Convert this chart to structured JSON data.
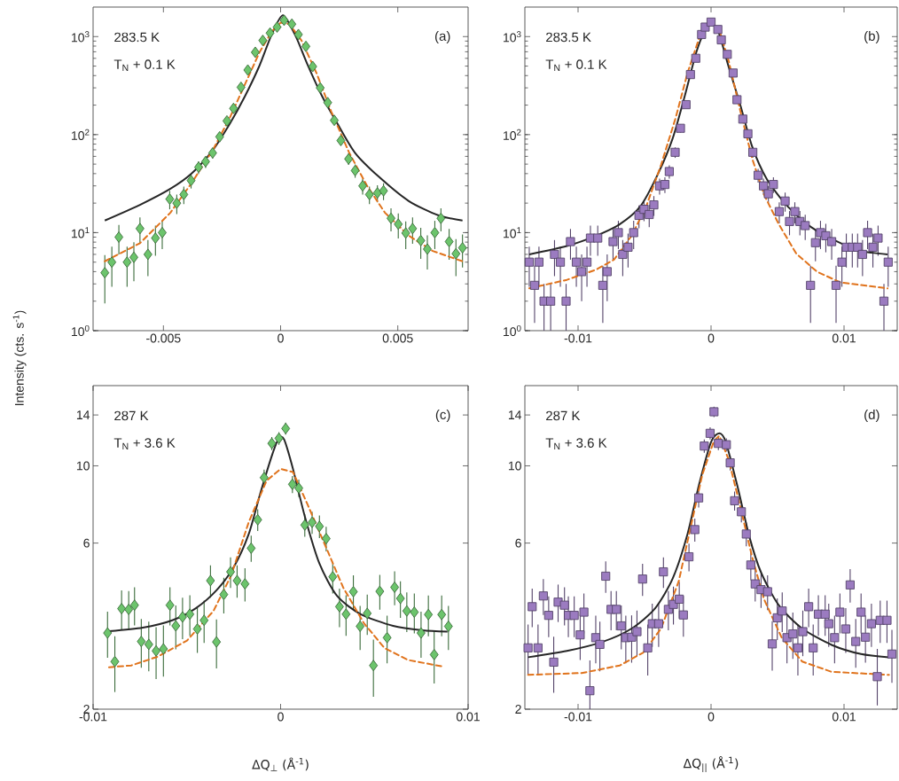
{
  "chart_data": [
    {
      "type": "scatter",
      "ylabel": "Intensity (cts. s$^{-1}$)",
      "annotations": [
        "283.5 K",
        "T$_{N}$ + 0.1 K",
        "(a)"
      ],
      "log": true,
      "xlim": [
        -0.008,
        0.008
      ],
      "ylim": [
        1,
        2000
      ],
      "xticks": [
        -0.005,
        0,
        0.005
      ],
      "yticks": [
        {
          "value": 1,
          "label": "10$^{0}$"
        },
        {
          "value": 10,
          "label": "10$^{1}$"
        },
        {
          "value": 100,
          "label": "10$^{2}$"
        },
        {
          "value": 1000,
          "label": "10$^{3}$"
        }
      ],
      "series": [
        {
          "color": "#6cc46c",
          "marker": "diamond",
          "x": [
            -0.0075,
            -0.0072,
            -0.0069,
            -0.00655,
            -0.00626,
            -0.006,
            -0.00566,
            -0.00534,
            -0.00505,
            -0.00473,
            -0.00443,
            -0.00413,
            -0.00382,
            -0.0035,
            -0.0032,
            -0.0029,
            -0.0026,
            -0.00229,
            -0.00201,
            -0.00169,
            -0.0014,
            -0.00108,
            -0.00076,
            -0.00045,
            -0.00015,
            0.00015,
            0.00048,
            0.00076,
            0.00108,
            0.00137,
            0.00169,
            0.00201,
            0.00229,
            0.00257,
            0.0029,
            0.00318,
            0.0035,
            0.00379,
            0.00413,
            0.00439,
            0.00471,
            0.00502,
            0.00534,
            0.00563,
            0.00598,
            0.00626,
            0.00658,
            0.00684,
            0.00719,
            0.00748,
            0.00776
          ],
          "values": [
            3.9,
            5,
            9,
            5,
            5.6,
            11,
            6,
            8.8,
            10,
            22,
            20,
            24.5,
            34,
            46.5,
            53,
            65,
            95,
            138,
            185,
            304,
            456,
            692,
            914,
            1087,
            1250,
            1467,
            1340,
            1050,
            794,
            495,
            300,
            212,
            140,
            87,
            56.5,
            43,
            30,
            24.5,
            25.4,
            26.7,
            14,
            12.2,
            9.9,
            11,
            8.3,
            6.8,
            10,
            14,
            8.1,
            6.1,
            7
          ],
          "errors": [
            2,
            2.2,
            3,
            2.2,
            2.4,
            3.3,
            2.4,
            3,
            3.2,
            4.7,
            4.5,
            5,
            5.8,
            6.8,
            7.3,
            8,
            10,
            12,
            14,
            17,
            21,
            26,
            30,
            null,
            null,
            null,
            null,
            null,
            28,
            22,
            17,
            15,
            12,
            9,
            7.5,
            6.6,
            5.5,
            5,
            5,
            5.2,
            3.7,
            3.5,
            3.1,
            3.3,
            2.9,
            2.6,
            3.2,
            3.7,
            2.8,
            2.5,
            2.6
          ]
        },
        {
          "type": "line",
          "color": "#262626",
          "marker": "none",
          "line_style": "solid",
          "x": [
            -0.0075,
            -0.006,
            -0.0047,
            -0.0038,
            -0.0029,
            -0.00216,
            -0.00153,
            -0.0009,
            -0.00038,
            0.0001,
            0.00064,
            0.00114,
            0.00178,
            0.00242,
            0.00318,
            0.0042,
            0.00547,
            0.00674,
            0.00776
          ],
          "values": [
            13.3,
            19.2,
            28,
            40,
            69,
            130,
            244,
            506,
            1050,
            1650,
            1014,
            524,
            244,
            130,
            65,
            37,
            21,
            15,
            13.3
          ]
        },
        {
          "type": "line",
          "color": "#e0731c",
          "marker": "none",
          "line_style": "dashed",
          "x": [
            -0.0075,
            -0.006,
            -0.0047,
            -0.0038,
            -0.0029,
            -0.00216,
            -0.00153,
            -0.0009,
            -0.00038,
            0,
            0.00038,
            0.00089,
            0.00153,
            0.00216,
            0.00293,
            0.00369,
            0.00445,
            0.00547,
            0.00649,
            0.00776
          ],
          "values": [
            5.1,
            7.8,
            16,
            32,
            69,
            150,
            322,
            692,
            1125,
            1387,
            1340,
            914,
            425,
            172,
            65,
            30,
            16,
            9.3,
            6.5,
            5.1
          ]
        }
      ]
    },
    {
      "type": "scatter",
      "annotations": [
        "283.5 K",
        "T$_{N}$ + 0.1 K",
        "(b)"
      ],
      "log": true,
      "xlim": [
        -0.014,
        0.014
      ],
      "ylim": [
        1,
        2000
      ],
      "xticks": [
        -0.01,
        0,
        0.01
      ],
      "yticks": [
        {
          "value": 1,
          "label": "10$^{0}$"
        },
        {
          "value": 10,
          "label": "10$^{1}$"
        },
        {
          "value": 100,
          "label": "10$^{2}$"
        },
        {
          "value": 1000,
          "label": "10$^{3}$"
        }
      ],
      "series": [
        {
          "color": "#9b7bc0",
          "marker": "square",
          "x": [
            -0.01367,
            -0.01327,
            -0.01294,
            -0.01256,
            -0.01206,
            -0.01177,
            -0.01133,
            -0.0109,
            -0.01057,
            -0.01013,
            -0.00973,
            -0.00933,
            -0.00907,
            -0.00852,
            -0.00814,
            -0.00781,
            -0.00737,
            -0.00697,
            -0.00664,
            -0.00624,
            -0.00582,
            -0.00542,
            -0.00504,
            -0.00465,
            -0.0043,
            -0.00387,
            -0.00347,
            -0.00314,
            -0.0027,
            -0.0023,
            -0.00188,
            -0.00155,
            -0.00115,
            -0.00071,
            -0.00044,
            0,
            0.00051,
            0.00077,
            0.00122,
            0.00166,
            0.00195,
            0.00239,
            0.00277,
            0.00314,
            0.00354,
            0.00394,
            0.00431,
            0.00469,
            0.00513,
            0.00557,
            0.0059,
            0.0063,
            0.00668,
            0.00708,
            0.00748,
            0.00785,
            0.00823,
            0.00863,
            0.00907,
            0.0094,
            0.00984,
            0.01017,
            0.01062,
            0.01102,
            0.01139,
            0.01177,
            0.01217,
            0.01256,
            0.013,
            0.01332
          ],
          "values": [
            5,
            2.9,
            5,
            2,
            2,
            6,
            5,
            2,
            8.1,
            5,
            4,
            5,
            8.8,
            8.8,
            2.9,
            4,
            8.1,
            10,
            6,
            7.1,
            10,
            15,
            17.3,
            15.3,
            19.2,
            30,
            31,
            42,
            66,
            116,
            202,
            410,
            601,
            1050,
            1250,
            1406,
            1182,
            926,
            659,
            425,
            227,
            144,
            102,
            66,
            38.5,
            30,
            24.9,
            31,
            16.4,
            21,
            13,
            16.4,
            13,
            11.8,
            2.9,
            7.9,
            10,
            9.3,
            8.1,
            2.9,
            5,
            7.1,
            7.1,
            7.1,
            6,
            10,
            7.1,
            8.8,
            2,
            5
          ],
          "errors": [
            2.2,
            1.7,
            2.2,
            1,
            1,
            2.4,
            2.2,
            1,
            2.8,
            2.2,
            2,
            2.2,
            3,
            3,
            1.7,
            2,
            2.8,
            3.2,
            2.4,
            2.7,
            3.2,
            3.9,
            4.2,
            3.9,
            4.4,
            5.5,
            5.6,
            6.5,
            8.1,
            11,
            14,
            20,
            25,
            null,
            null,
            null,
            null,
            null,
            26,
            21,
            15,
            12,
            10,
            8.1,
            6.2,
            5.5,
            5,
            5.6,
            4,
            4.6,
            3.6,
            4,
            3.6,
            3.4,
            1.7,
            2.8,
            3.2,
            3,
            2.8,
            1.7,
            2.2,
            2.7,
            2.7,
            2.7,
            2.4,
            3.2,
            2.7,
            3,
            1,
            2.2
          ]
        },
        {
          "type": "line",
          "color": "#262626",
          "marker": "none",
          "line_style": "solid",
          "x": [
            -0.01367,
            -0.01084,
            -0.00863,
            -0.00686,
            -0.00531,
            -0.00398,
            -0.00288,
            -0.00199,
            -0.00111,
            -0.00044,
            4e-05,
            0.00055,
            0.00133,
            0.00221,
            0.0031,
            0.0042,
            0.00575,
            0.00752,
            0.00951,
            0.01128,
            0.01327
          ],
          "values": [
            6,
            7.3,
            9.3,
            12.2,
            18.6,
            40,
            92,
            244,
            692,
            1165,
            1340,
            1125,
            489,
            198,
            75,
            35,
            18.6,
            11.4,
            8.1,
            6.5,
            6
          ]
        },
        {
          "type": "line",
          "color": "#e0731c",
          "marker": "none",
          "line_style": "dashed",
          "x": [
            -0.01367,
            -0.01084,
            -0.00863,
            -0.0073,
            -0.00597,
            -0.00487,
            -0.00376,
            -0.00265,
            -0.00177,
            -0.00088,
            0,
            0.00066,
            0.00133,
            0.00221,
            0.0031,
            0.00398,
            0.00509,
            0.00641,
            0.00796,
            0.00973,
            0.01327
          ],
          "values": [
            2.7,
            3.3,
            4.2,
            5.3,
            9.3,
            18.6,
            49,
            150,
            425,
            979,
            1435,
            1125,
            561,
            172,
            56.5,
            24.5,
            12.2,
            6.1,
            4,
            3.1,
            2.7
          ]
        }
      ]
    },
    {
      "type": "scatter",
      "xlabel": "ΔQ$_{⊥}$ (Å$^{-1}$)",
      "annotations": [
        "287 K",
        "T$_{N}$ + 3.6 K",
        "(c)"
      ],
      "log": true,
      "xlim": [
        -0.01,
        0.01
      ],
      "ylim": [
        2,
        17
      ],
      "xticks": [
        -0.01,
        0,
        0.01
      ],
      "yticks": [
        2,
        6,
        10,
        14
      ],
      "series": [
        {
          "color": "#6cc46c",
          "marker": "diamond",
          "x": [
            -0.00923,
            -0.00884,
            -0.00848,
            -0.0081,
            -0.00779,
            -0.00743,
            -0.00703,
            -0.00664,
            -0.00625,
            -0.0059,
            -0.00559,
            -0.00523,
            -0.00484,
            -0.00444,
            -0.00408,
            -0.00374,
            -0.00342,
            -0.00303,
            -0.00267,
            -0.00232,
            -0.0019,
            -0.00157,
            -0.00122,
            -0.00088,
            -0.00047,
            -9e-05,
            0.00027,
            0.00063,
            0.00097,
            0.00129,
            0.00168,
            0.00207,
            0.00243,
            0.00278,
            0.00314,
            0.00349,
            0.00388,
            0.00424,
            0.00462,
            0.00495,
            0.00529,
            0.00568,
            0.00608,
            0.00639,
            0.00673,
            0.00713,
            0.00749,
            0.00788,
            0.00819,
            0.00859,
            0.00895
          ],
          "values": [
            3.31,
            2.74,
            3.89,
            3.87,
            3.98,
            3.13,
            3.07,
            2.94,
            2.98,
            3.98,
            3.47,
            3.68,
            3.75,
            3.4,
            3.6,
            4.68,
            3.12,
            4.27,
            4.96,
            4.68,
            4.58,
            5.8,
            7,
            9.25,
            11.6,
            12,
            12.8,
            8.85,
            8.63,
            6.76,
            6.88,
            6.7,
            6.18,
            4.8,
            3.94,
            3.75,
            4.35,
            3.46,
            3.77,
            2.67,
            4.36,
            3.21,
            4.48,
            4.16,
            3.83,
            3.8,
            3.31,
            3.74,
            2.87,
            3.74,
            3.46
          ],
          "errors": [
            0.5,
            0.5,
            0.5,
            0.5,
            0.5,
            0.5,
            0.5,
            0.5,
            0.5,
            0.5,
            0.5,
            0.5,
            0.5,
            0.5,
            0.5,
            0.5,
            0.5,
            0.5,
            0.5,
            0.5,
            0.5,
            0.5,
            0.5,
            0.5,
            0.5,
            0.5,
            0.5,
            0.5,
            0.5,
            0.5,
            0.5,
            0.5,
            0.5,
            0.5,
            0.5,
            0.5,
            0.5,
            0.5,
            0.5,
            0.5,
            0.5,
            0.5,
            0.5,
            0.5,
            0.5,
            0.5,
            0.5,
            0.5,
            0.5,
            0.5,
            0.5
          ]
        },
        {
          "type": "line",
          "color": "#262626",
          "marker": "none",
          "line_style": "solid",
          "x": [
            -0.00915,
            -0.00735,
            -0.00578,
            -0.00452,
            -0.00342,
            -0.00248,
            -0.0017,
            -0.00107,
            -0.00044,
            -9e-05,
            0.00019,
            0.00066,
            0.00129,
            0.00207,
            0.00301,
            0.00427,
            0.006,
            0.00757,
            0.0089
          ],
          "values": [
            3.35,
            3.43,
            3.6,
            3.9,
            4.39,
            5.14,
            6.37,
            8.38,
            10.8,
            12,
            11.9,
            9.8,
            7.16,
            5.24,
            4.23,
            3.75,
            3.47,
            3.37,
            3.34
          ]
        },
        {
          "type": "line",
          "color": "#e0731c",
          "marker": "none",
          "line_style": "dashed",
          "x": [
            -0.00915,
            -0.00797,
            -0.00656,
            -0.00499,
            -0.00358,
            -0.00264,
            -0.0017,
            -0.00075,
            0,
            0.00066,
            0.00144,
            0.00239,
            0.00333,
            0.00443,
            0.00553,
            0.00678,
            0.00867
          ],
          "values": [
            2.64,
            2.67,
            2.83,
            3.15,
            3.83,
            4.84,
            6.89,
            9.06,
            9.8,
            9.6,
            7.74,
            5.89,
            4.48,
            3.54,
            3,
            2.77,
            2.65
          ]
        }
      ]
    },
    {
      "type": "scatter",
      "xlabel": "ΔQ$_{||}$ (Å$^{-1}$)",
      "annotations": [
        "287 K",
        "T$_{N}$ + 3.6 K",
        "(d)"
      ],
      "log": true,
      "xlim": [
        -0.014,
        0.014
      ],
      "ylim": [
        2,
        17
      ],
      "xticks": [
        -0.01,
        0,
        0.01
      ],
      "yticks": [
        2,
        6,
        10,
        14
      ],
      "series": [
        {
          "color": "#9b7bc0",
          "marker": "square",
          "x": [
            -0.01376,
            -0.01345,
            -0.01301,
            -0.01261,
            -0.01221,
            -0.01183,
            -0.0115,
            -0.01102,
            -0.01073,
            -0.01029,
            -0.00984,
            -0.00956,
            -0.00911,
            -0.00867,
            -0.00836,
            -0.00792,
            -0.00752,
            -0.00712,
            -0.00675,
            -0.00641,
            -0.00597,
            -0.00557,
            -0.00515,
            -0.00476,
            -0.00442,
            -0.00394,
            -0.00358,
            -0.00321,
            -0.00283,
            -0.00239,
            -0.00208,
            -0.00166,
            -0.00122,
            -0.00093,
            -0.00051,
            -7e-05,
            0.00022,
            0.00055,
            0.00115,
            0.00144,
            0.00177,
            0.00228,
            0.00265,
            0.00299,
            0.00332,
            0.00376,
            0.00425,
            0.0046,
            0.00498,
            0.00535,
            0.00571,
            0.00615,
            0.00653,
            0.0069,
            0.00734,
            0.00768,
            0.00807,
            0.00858,
            0.00885,
            0.00929,
            0.00969,
            0.01013,
            0.01046,
            0.01088,
            0.01128,
            0.01161,
            0.01206,
            0.0125,
            0.01272,
            0.01323,
            0.0136
          ],
          "values": [
            3,
            3.94,
            3,
            4.23,
            3.72,
            2.73,
            4.06,
            3.98,
            3.72,
            3.72,
            3.27,
            3.8,
            2.26,
            3.21,
            3.07,
            4.82,
            3.87,
            3.87,
            3.47,
            3.21,
            3.22,
            3.34,
            4.73,
            3,
            3.52,
            3.52,
            4.96,
            3.87,
            4,
            4.14,
            3.73,
            5.48,
            6.56,
            8.09,
            11.4,
            12.4,
            14.3,
            11.6,
            11.5,
            10.2,
            7.94,
            7.38,
            6.37,
            5.19,
            4.58,
            4.41,
            4.35,
            3.08,
            3.66,
            3.83,
            3.21,
            3.29,
            3,
            3.34,
            3.94,
            3,
            3.75,
            3.75,
            3.52,
            3.21,
            3.8,
            3.4,
            4.55,
            3.13,
            3.8,
            3.22,
            3.52,
            2.48,
            3.6,
            3.6,
            2.88
          ],
          "errors": [
            0.5,
            0.5,
            0.5,
            0.5,
            0.5,
            0.5,
            0.5,
            0.5,
            0.5,
            0.5,
            0.5,
            0.5,
            [
              2,
              2.76
            ],
            0.5,
            0.5,
            0.5,
            0.5,
            0.5,
            0.5,
            0.5,
            0.5,
            0.5,
            0.5,
            0.5,
            0.5,
            0.5,
            0.5,
            0.5,
            0.5,
            0.5,
            0.5,
            0.5,
            0.5,
            0.5,
            0.5,
            0.5,
            0.5,
            0.5,
            0.5,
            0.5,
            0.5,
            0.5,
            0.5,
            0.5,
            0.5,
            0.5,
            0.5,
            0.5,
            0.5,
            0.5,
            0.5,
            0.5,
            0.5,
            0.5,
            0.5,
            0.5,
            0.5,
            0.5,
            0.5,
            0.5,
            0.5,
            0.5,
            0.5,
            0.5,
            0.5,
            0.5,
            0.5,
            [
              2.05,
              2.98
            ],
            0.5,
            0.5,
            0.5
          ]
        },
        {
          "type": "line",
          "color": "#262626",
          "marker": "none",
          "line_style": "solid",
          "x": [
            -0.01376,
            -0.01084,
            -0.00818,
            -0.00597,
            -0.0042,
            -0.00288,
            -0.00177,
            -0.00088,
            0,
            0.00062,
            0.00111,
            0.00199,
            0.00288,
            0.00376,
            0.00509,
            0.00686,
            0.00907,
            0.01128,
            0.01338
          ],
          "values": [
            2.82,
            2.94,
            3.12,
            3.41,
            3.9,
            4.75,
            6.37,
            8.9,
            11.7,
            12.4,
            11.7,
            8.72,
            6.26,
            4.94,
            3.98,
            3.41,
            3.06,
            2.88,
            2.82
          ]
        },
        {
          "type": "line",
          "color": "#e0731c",
          "marker": "none",
          "line_style": "dashed",
          "x": [
            -0.01376,
            -0.00973,
            -0.00686,
            -0.00509,
            -0.00376,
            -0.00243,
            -0.00155,
            -0.00066,
            0.00022,
            0.00062,
            0.00133,
            0.00221,
            0.0031,
            0.00398,
            0.00531,
            0.00686,
            0.00907,
            0.01338
          ],
          "values": [
            2.51,
            2.54,
            2.67,
            2.91,
            3.41,
            4.66,
            6.62,
            9.42,
            11.8,
            12.2,
            10.4,
            7.6,
            5.45,
            4.14,
            3.21,
            2.74,
            2.56,
            2.51
          ]
        }
      ]
    }
  ]
}
